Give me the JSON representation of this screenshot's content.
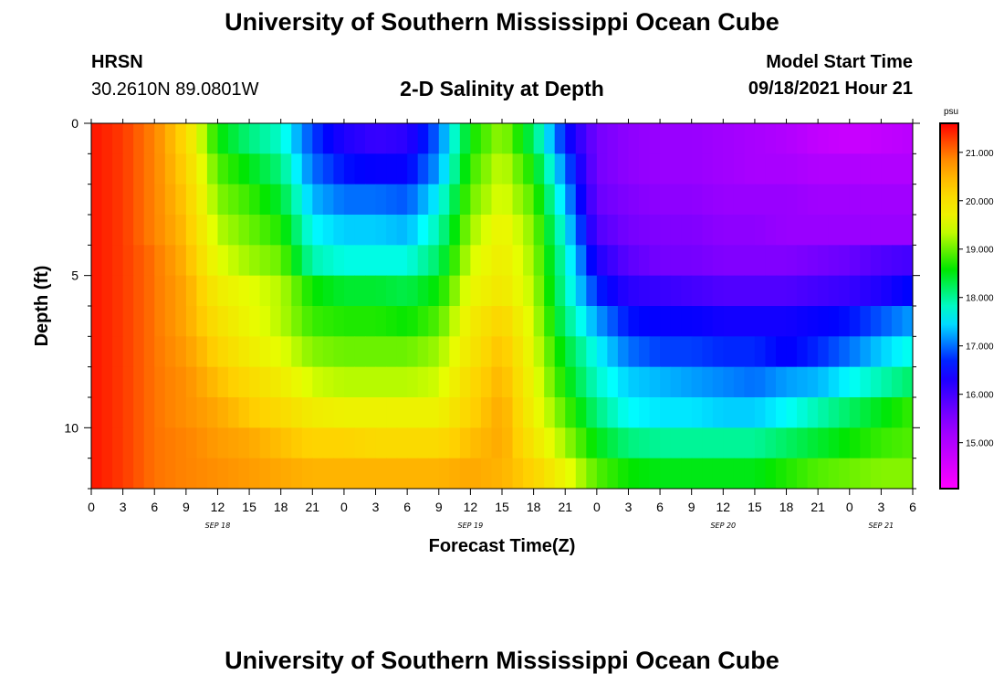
{
  "header": {
    "title": "University of Southern Mississippi Ocean Cube",
    "station": "HRSN",
    "coords": "30.2610N  89.0801W",
    "subtitle": "2-D Salinity at Depth",
    "model_label": "Model Start Time",
    "model_time": "09/18/2021 Hour 21"
  },
  "footer": {
    "title": "University of Southern Mississippi Ocean Cube"
  },
  "chart_data": {
    "type": "heatmap",
    "title": "2-D Salinity at Depth",
    "xlabel": "Forecast Time(Z)",
    "ylabel": "Depth (ft)",
    "x_tick_labels": [
      "0",
      "3",
      "6",
      "9",
      "12",
      "15",
      "18",
      "21",
      "0",
      "3",
      "6",
      "9",
      "12",
      "15",
      "18",
      "21",
      "0",
      "3",
      "6",
      "9",
      "12",
      "15",
      "18",
      "21",
      "0",
      "3",
      "6"
    ],
    "x_date_labels": [
      {
        "label": "SEP 18",
        "tick_index": 4
      },
      {
        "label": "SEP 19",
        "tick_index": 12
      },
      {
        "label": "SEP 20",
        "tick_index": 20
      },
      {
        "label": "SEP 21",
        "tick_index": 25
      }
    ],
    "y_ticks": [
      0,
      5,
      10
    ],
    "y_range": [
      0,
      12
    ],
    "x_range_hours": [
      0,
      78
    ],
    "depth_levels": [
      0.5,
      1.5,
      2.5,
      3.5,
      4.5,
      5.5,
      6.5,
      7.5,
      8.5,
      9.5,
      10.5,
      11.5
    ],
    "forecast_hours": [
      0,
      3,
      6,
      9,
      12,
      15,
      18,
      21,
      24,
      27,
      30,
      33,
      36,
      39,
      42,
      45,
      48,
      51,
      54,
      57,
      60,
      63,
      66,
      69,
      72,
      75,
      78
    ],
    "values": [
      [
        21.5,
        21.3,
        20.9,
        20.1,
        18.6,
        18.1,
        17.8,
        16.8,
        16.3,
        16.1,
        16.2,
        17.0,
        18.6,
        19.2,
        18.2,
        16.6,
        15.6,
        15.4,
        15.3,
        15.3,
        15.2,
        15.1,
        15.0,
        14.8,
        14.7,
        14.8,
        14.9
      ],
      [
        21.5,
        21.3,
        20.9,
        20.2,
        18.9,
        18.5,
        18.1,
        17.0,
        16.6,
        16.5,
        16.5,
        17.2,
        18.8,
        19.4,
        18.6,
        17.0,
        15.6,
        15.4,
        15.3,
        15.3,
        15.2,
        15.1,
        15.1,
        15.0,
        15.0,
        15.0,
        15.0
      ],
      [
        21.5,
        21.3,
        20.9,
        20.3,
        19.1,
        18.8,
        18.4,
        17.3,
        17.0,
        17.0,
        16.9,
        17.6,
        19.0,
        19.5,
        18.9,
        17.3,
        15.7,
        15.5,
        15.4,
        15.4,
        15.3,
        15.3,
        15.3,
        15.2,
        15.2,
        15.2,
        15.2
      ],
      [
        21.5,
        21.3,
        20.9,
        20.4,
        19.3,
        19.0,
        18.7,
        17.6,
        17.4,
        17.4,
        17.3,
        17.9,
        19.2,
        19.7,
        19.1,
        17.6,
        15.9,
        15.6,
        15.5,
        15.5,
        15.4,
        15.4,
        15.3,
        15.3,
        15.3,
        15.3,
        15.3
      ],
      [
        21.5,
        21.3,
        21.0,
        20.5,
        19.5,
        19.2,
        19.0,
        17.9,
        17.7,
        17.7,
        17.7,
        18.2,
        19.4,
        19.8,
        19.2,
        17.8,
        16.3,
        15.8,
        15.6,
        15.6,
        15.5,
        15.5,
        15.5,
        15.6,
        15.7,
        15.9,
        16.0
      ],
      [
        21.5,
        21.3,
        21.0,
        20.6,
        19.8,
        19.5,
        19.3,
        18.6,
        18.4,
        18.4,
        18.3,
        18.6,
        19.6,
        19.9,
        19.3,
        17.9,
        16.7,
        16.2,
        16.1,
        16.0,
        15.9,
        15.9,
        15.9,
        16.0,
        16.1,
        16.3,
        16.6
      ],
      [
        21.5,
        21.3,
        21.0,
        20.6,
        20.0,
        19.6,
        19.3,
        18.8,
        18.7,
        18.7,
        18.6,
        18.9,
        19.8,
        20.2,
        19.4,
        18.1,
        17.2,
        16.6,
        16.5,
        16.5,
        16.4,
        16.4,
        16.4,
        16.5,
        16.6,
        16.9,
        17.2
      ],
      [
        21.5,
        21.3,
        21.0,
        20.7,
        20.2,
        19.8,
        19.5,
        19.1,
        19.0,
        19.0,
        19.0,
        19.2,
        19.9,
        20.4,
        19.5,
        18.4,
        17.6,
        17.0,
        16.8,
        16.8,
        16.7,
        16.7,
        16.5,
        16.7,
        17.0,
        17.4,
        17.7
      ],
      [
        21.5,
        21.3,
        21.0,
        20.8,
        20.4,
        20.1,
        19.8,
        19.4,
        19.3,
        19.3,
        19.3,
        19.4,
        20.1,
        20.5,
        19.6,
        18.6,
        17.8,
        17.4,
        17.3,
        17.2,
        17.1,
        17.0,
        17.2,
        17.3,
        17.6,
        17.9,
        18.2
      ],
      [
        21.5,
        21.3,
        21.0,
        20.8,
        20.6,
        20.3,
        20.1,
        19.8,
        19.7,
        19.7,
        19.7,
        19.7,
        20.2,
        20.6,
        19.7,
        18.9,
        18.1,
        17.6,
        17.5,
        17.5,
        17.4,
        17.4,
        17.6,
        17.9,
        18.2,
        18.5,
        18.8
      ],
      [
        21.5,
        21.3,
        21.0,
        20.9,
        20.7,
        20.6,
        20.4,
        20.2,
        20.2,
        20.1,
        20.1,
        20.1,
        20.4,
        20.6,
        19.9,
        19.2,
        18.5,
        18.1,
        18.0,
        18.0,
        18.0,
        18.0,
        18.2,
        18.4,
        18.6,
        18.8,
        18.9
      ],
      [
        21.5,
        21.3,
        21.0,
        20.9,
        20.8,
        20.7,
        20.6,
        20.5,
        20.5,
        20.5,
        20.5,
        20.5,
        20.6,
        20.5,
        20.2,
        19.6,
        18.9,
        18.6,
        18.5,
        18.5,
        18.5,
        18.5,
        18.7,
        18.9,
        19.0,
        19.1,
        19.1
      ]
    ],
    "colorbar": {
      "unit": "psu",
      "ticks": [
        "21.000",
        "20.000",
        "19.000",
        "18.000",
        "17.000",
        "16.000",
        "15.000"
      ],
      "tick_values": [
        21,
        20,
        19,
        18,
        17,
        16,
        15
      ],
      "range": [
        14.05,
        21.6
      ]
    }
  }
}
